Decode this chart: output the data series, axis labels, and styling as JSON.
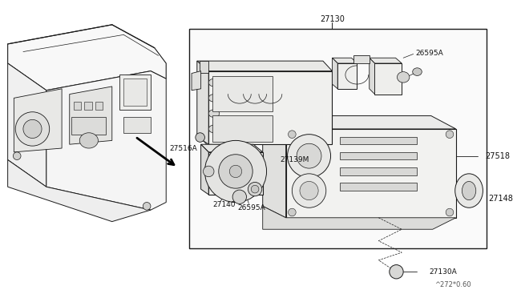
{
  "bg_color": "#ffffff",
  "line_color": "#1a1a1a",
  "labels": {
    "27130": "27130",
    "26595A_top": "26595A",
    "27518": "27518",
    "27516A": "27516A",
    "27139M": "27139M",
    "26595A_bot": "26595A",
    "27140": "27140",
    "27148": "27148",
    "27130A": "27130A",
    "part_code": "^272*0.60"
  },
  "fig_width": 6.4,
  "fig_height": 3.72,
  "dpi": 100
}
